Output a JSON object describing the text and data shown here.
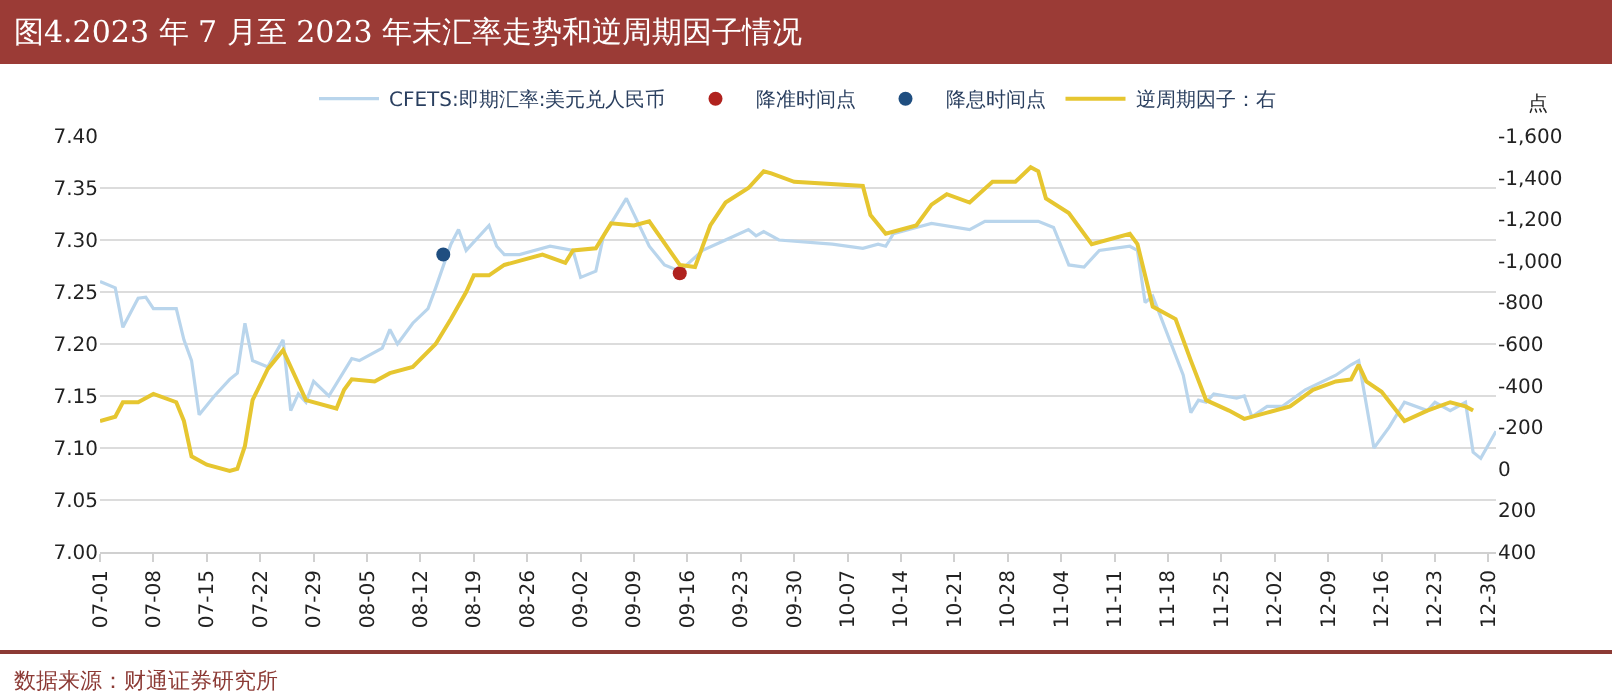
{
  "chart_data": {
    "type": "line",
    "title": "图4.2023 年 7 月至 2023 年末汇率走势和逆周期因子情况",
    "y2label": "点",
    "annotations": [
      "数据来源：财通证券研究所"
    ],
    "legend": "top",
    "grid": "y",
    "xlim": [
      "--07-01",
      "--12-31"
    ],
    "xticks": [
      {
        "value": "--07-01",
        "label": "07-01"
      },
      {
        "value": "--07-08",
        "label": "07-08"
      },
      {
        "value": "--07-15",
        "label": "07-15"
      },
      {
        "value": "--07-22",
        "label": "07-22"
      },
      {
        "value": "--07-29",
        "label": "07-29"
      },
      {
        "value": "--08-05",
        "label": "08-05"
      },
      {
        "value": "--08-12",
        "label": "08-12"
      },
      {
        "value": "--08-19",
        "label": "08-19"
      },
      {
        "value": "--08-26",
        "label": "08-26"
      },
      {
        "value": "--09-02",
        "label": "09-02"
      },
      {
        "value": "--09-09",
        "label": "09-09"
      },
      {
        "value": "--09-16",
        "label": "09-16"
      },
      {
        "value": "--09-23",
        "label": "09-23"
      },
      {
        "value": "--09-30",
        "label": "09-30"
      },
      {
        "value": "--10-07",
        "label": "10-07"
      },
      {
        "value": "--10-14",
        "label": "10-14"
      },
      {
        "value": "--10-21",
        "label": "10-21"
      },
      {
        "value": "--10-28",
        "label": "10-28"
      },
      {
        "value": "--11-04",
        "label": "11-04"
      },
      {
        "value": "--11-11",
        "label": "11-11"
      },
      {
        "value": "--11-18",
        "label": "11-18"
      },
      {
        "value": "--11-25",
        "label": "11-25"
      },
      {
        "value": "--12-02",
        "label": "12-02"
      },
      {
        "value": "--12-09",
        "label": "12-09"
      },
      {
        "value": "--12-16",
        "label": "12-16"
      },
      {
        "value": "--12-23",
        "label": "12-23"
      },
      {
        "value": "--12-30",
        "label": "12-30"
      }
    ],
    "ylim": [
      7.0,
      7.4
    ],
    "yticks": [
      {
        "value": 7.0,
        "label": "7.00"
      },
      {
        "value": 7.05,
        "label": "7.05"
      },
      {
        "value": 7.1,
        "label": "7.10"
      },
      {
        "value": 7.15,
        "label": "7.15"
      },
      {
        "value": 7.2,
        "label": "7.20"
      },
      {
        "value": 7.25,
        "label": "7.25"
      },
      {
        "value": 7.3,
        "label": "7.30"
      },
      {
        "value": 7.35,
        "label": "7.35"
      },
      {
        "value": 7.4,
        "label": "7.40"
      }
    ],
    "y2lim": [
      400,
      -1600
    ],
    "y2ticks": [
      {
        "value": -1600,
        "label": "-1,600"
      },
      {
        "value": -1400,
        "label": "-1,400"
      },
      {
        "value": -1200,
        "label": "-1,200"
      },
      {
        "value": -1000,
        "label": "-1,000"
      },
      -800,
      -600,
      -400,
      -200,
      0,
      200,
      400
    ],
    "series": [
      {
        "name": "CFETS:即期汇率:美元兑人民币",
        "axis": "y",
        "color": "#b9d5ec",
        "marker": "none",
        "x": [
          "--07-01",
          "--07-03",
          "--07-04",
          "--07-06",
          "--07-07",
          "--07-08",
          "--07-11",
          "--07-12",
          "--07-13",
          "--07-14",
          "--07-16",
          "--07-18",
          "--07-19",
          "--07-20",
          "--07-21",
          "--07-23",
          "--07-25",
          "--07-26",
          "--07-27",
          "--07-28",
          "--07-29",
          "--07-31",
          "--08-03",
          "--08-04",
          "--08-07",
          "--08-08",
          "--08-09",
          "--08-11",
          "--08-13",
          "--08-14",
          "--08-16",
          "--08-17",
          "--08-18",
          "--08-21",
          "--08-22",
          "--08-23",
          "--08-25",
          "--08-29",
          "--09-01",
          "--09-02",
          "--09-04",
          "--09-05",
          "--09-08",
          "--09-11",
          "--09-13",
          "--09-15",
          "--09-18",
          "--09-21",
          "--09-24",
          "--09-25",
          "--09-26",
          "--09-28",
          "--10-05",
          "--10-09",
          "--10-11",
          "--10-12",
          "--10-13",
          "--10-16",
          "--10-18",
          "--10-23",
          "--10-25",
          "--11-01",
          "--11-03",
          "--11-05",
          "--11-07",
          "--11-09",
          "--11-13",
          "--11-14",
          "--11-15",
          "--11-16",
          "--11-20",
          "--11-21",
          "--11-22",
          "--11-23",
          "--11-24",
          "--11-27",
          "--11-28",
          "--11-29",
          "--12-01",
          "--12-03",
          "--12-06",
          "--12-10",
          "--12-12",
          "--12-13",
          "--12-15",
          "--12-17",
          "--12-19",
          "--12-22",
          "--12-23",
          "--12-25",
          "--12-27",
          "--12-28",
          "--12-29",
          "--12-31"
        ],
        "values": [
          7.26,
          7.254,
          7.216,
          7.244,
          7.245,
          7.234,
          7.234,
          7.204,
          7.184,
          7.132,
          7.15,
          7.166,
          7.172,
          7.22,
          7.184,
          7.178,
          7.204,
          7.136,
          7.152,
          7.144,
          7.164,
          7.15,
          7.186,
          7.184,
          7.196,
          7.214,
          7.2,
          7.22,
          7.234,
          7.254,
          7.296,
          7.31,
          7.29,
          7.314,
          7.294,
          7.286,
          7.286,
          7.294,
          7.29,
          7.264,
          7.27,
          7.304,
          7.34,
          7.294,
          7.276,
          7.27,
          7.29,
          7.3,
          7.31,
          7.304,
          7.308,
          7.3,
          7.296,
          7.292,
          7.296,
          7.294,
          7.306,
          7.312,
          7.316,
          7.31,
          7.318,
          7.318,
          7.312,
          7.276,
          7.274,
          7.29,
          7.294,
          7.29,
          7.24,
          7.246,
          7.17,
          7.134,
          7.146,
          7.144,
          7.152,
          7.148,
          7.15,
          7.13,
          7.14,
          7.14,
          7.156,
          7.17,
          7.18,
          7.184,
          7.1,
          7.12,
          7.144,
          7.136,
          7.144,
          7.136,
          7.144,
          7.096,
          7.09,
          7.116
        ]
      },
      {
        "name": "降准时间点",
        "type": "scatter",
        "axis": "y",
        "color": "#b0221e",
        "marker": "circle",
        "x": [
          "--09-15"
        ],
        "values": [
          7.268
        ]
      },
      {
        "name": "降息时间点",
        "type": "scatter",
        "axis": "y",
        "color": "#1f4e80",
        "marker": "circle",
        "x": [
          "--08-15"
        ],
        "values": [
          7.286
        ]
      },
      {
        "name": "逆周期因子：右",
        "axis": "y2",
        "color": "#e6c630",
        "marker": "none",
        "x": [
          "--07-01",
          "--07-03",
          "--07-04",
          "--07-06",
          "--07-08",
          "--07-11",
          "--07-12",
          "--07-13",
          "--07-15",
          "--07-18",
          "--07-19",
          "--07-20",
          "--07-21",
          "--07-23",
          "--07-25",
          "--07-28",
          "--08-01",
          "--08-02",
          "--08-03",
          "--08-06",
          "--08-08",
          "--08-11",
          "--08-14",
          "--08-16",
          "--08-18",
          "--08-19",
          "--08-21",
          "--08-23",
          "--08-28",
          "--08-31",
          "--09-01",
          "--09-04",
          "--09-06",
          "--09-09",
          "--09-11",
          "--09-15",
          "--09-17",
          "--09-19",
          "--09-21",
          "--09-24",
          "--09-26",
          "--09-27",
          "--09-30",
          "--10-09",
          "--10-10",
          "--10-12",
          "--10-16",
          "--10-18",
          "--10-20",
          "--10-23",
          "--10-26",
          "--10-29",
          "--10-31",
          "--11-01",
          "--11-02",
          "--11-05",
          "--11-08",
          "--11-13",
          "--11-14",
          "--11-16",
          "--11-19",
          "--11-21",
          "--11-23",
          "--11-26",
          "--11-28",
          "--12-01",
          "--12-04",
          "--12-07",
          "--12-10",
          "--12-12",
          "--12-13",
          "--12-14",
          "--12-16",
          "--12-19",
          "--12-22",
          "--12-25",
          "--12-27",
          "--12-28"
        ],
        "values": [
          -230,
          -250,
          -320,
          -320,
          -360,
          -320,
          -230,
          -60,
          -20,
          10,
          0,
          -110,
          -330,
          -480,
          -570,
          -330,
          -290,
          -380,
          -430,
          -420,
          -460,
          -490,
          -600,
          -720,
          -850,
          -930,
          -930,
          -980,
          -1030,
          -990,
          -1050,
          -1060,
          -1180,
          -1170,
          -1190,
          -980,
          -970,
          -1170,
          -1280,
          -1350,
          -1430,
          -1420,
          -1380,
          -1360,
          -1220,
          -1130,
          -1170,
          -1270,
          -1320,
          -1280,
          -1380,
          -1380,
          -1450,
          -1430,
          -1300,
          -1230,
          -1080,
          -1130,
          -1080,
          -780,
          -720,
          -520,
          -330,
          -280,
          -240,
          -270,
          -300,
          -380,
          -420,
          -430,
          -500,
          -420,
          -370,
          -230,
          -280,
          -320,
          -300,
          -280
        ]
      }
    ]
  }
}
